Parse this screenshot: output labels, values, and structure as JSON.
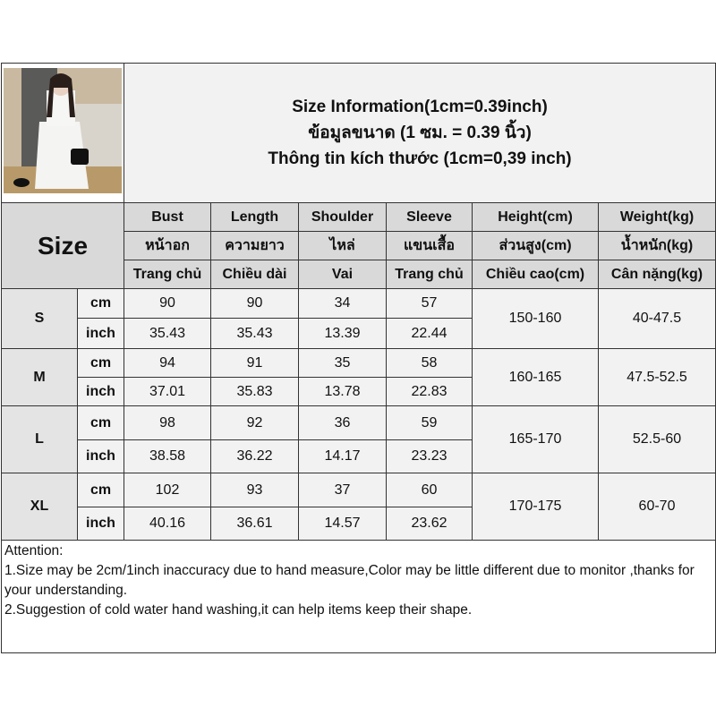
{
  "title": {
    "line1": "Size Information(1cm=0.39inch)",
    "line2": "ข้อมูลขนาด (1 ซม. = 0.39 นิ้ว)",
    "line3": "Thông tin kích thước (1cm=0,39 inch)"
  },
  "size_label": "Size",
  "columns": [
    {
      "en": "Bust",
      "th": "หน้าอก",
      "vi": "Trang chủ"
    },
    {
      "en": "Length",
      "th": "ความยาว",
      "vi": "Chiều dài"
    },
    {
      "en": "Shoulder",
      "th": "ไหล่",
      "vi": "Vai"
    },
    {
      "en": "Sleeve",
      "th": "แขนเสื้อ",
      "vi": "Trang chủ"
    },
    {
      "en": "Height(cm)",
      "th": "ส่วนสูง(cm)",
      "vi": "Chiều cao(cm)"
    },
    {
      "en": "Weight(kg)",
      "th": "น้ำหนัก(kg)",
      "vi": "Cân nặng(kg)"
    }
  ],
  "rows": [
    {
      "size": "S",
      "cm": [
        "90",
        "90",
        "34",
        "57"
      ],
      "inch": [
        "35.43",
        "35.43",
        "13.39",
        "22.44"
      ],
      "height": "150-160",
      "weight": "40-47.5"
    },
    {
      "size": "M",
      "cm": [
        "94",
        "91",
        "35",
        "58"
      ],
      "inch": [
        "37.01",
        "35.83",
        "13.78",
        "22.83"
      ],
      "height": "160-165",
      "weight": "47.5-52.5"
    },
    {
      "size": "L",
      "cm": [
        "98",
        "92",
        "36",
        "59"
      ],
      "inch": [
        "38.58",
        "36.22",
        "14.17",
        "23.23"
      ],
      "height": "165-170",
      "weight": "52.5-60"
    },
    {
      "size": "XL",
      "cm": [
        "102",
        "93",
        "37",
        "60"
      ],
      "inch": [
        "40.16",
        "36.61",
        "14.57",
        "23.62"
      ],
      "height": "170-175",
      "weight": "60-70"
    }
  ],
  "units": {
    "cm": "cm",
    "inch": "inch"
  },
  "attention": {
    "heading": "Attention:",
    "line1": "1.Size may be 2cm/1inch inaccuracy due to hand measure,Color may be little different due to monitor ,thanks for your understanding.",
    "line2": "2.Suggestion of cold water hand washing,it can help items keep their shape."
  }
}
